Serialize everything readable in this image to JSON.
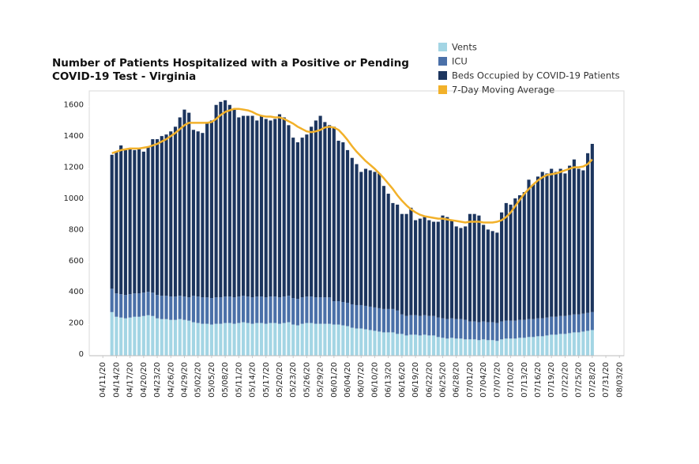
{
  "chart_data": {
    "type": "bar",
    "title": "Number of Patients Hospitalized with a Positive or Pending COVID-19 Test - Virginia",
    "x": [
      "04/13/20",
      "04/14/20",
      "04/15/20",
      "04/16/20",
      "04/17/20",
      "04/18/20",
      "04/19/20",
      "04/20/20",
      "04/21/20",
      "04/22/20",
      "04/23/20",
      "04/24/20",
      "04/25/20",
      "04/26/20",
      "04/27/20",
      "04/28/20",
      "04/29/20",
      "04/30/20",
      "05/01/20",
      "05/02/20",
      "05/03/20",
      "05/04/20",
      "05/05/20",
      "05/06/20",
      "05/07/20",
      "05/08/20",
      "05/09/20",
      "05/10/20",
      "05/11/20",
      "05/12/20",
      "05/13/20",
      "05/14/20",
      "05/15/20",
      "05/16/20",
      "05/17/20",
      "05/18/20",
      "05/19/20",
      "05/20/20",
      "05/21/20",
      "05/22/20",
      "05/23/20",
      "05/24/20",
      "05/25/20",
      "05/26/20",
      "05/27/20",
      "05/28/20",
      "05/29/20",
      "05/30/20",
      "05/31/20",
      "06/01/20",
      "06/02/20",
      "06/03/20",
      "06/04/20",
      "06/05/20",
      "06/06/20",
      "06/07/20",
      "06/08/20",
      "06/09/20",
      "06/10/20",
      "06/11/20",
      "06/12/20",
      "06/13/20",
      "06/14/20",
      "06/15/20",
      "06/16/20",
      "06/17/20",
      "06/18/20",
      "06/19/20",
      "06/20/20",
      "06/21/20",
      "06/22/20",
      "06/23/20",
      "06/24/20",
      "06/25/20",
      "06/26/20",
      "06/27/20",
      "06/28/20",
      "06/29/20",
      "06/30/20",
      "07/01/20",
      "07/02/20",
      "07/03/20",
      "07/04/20",
      "07/05/20",
      "07/06/20",
      "07/07/20",
      "07/08/20",
      "07/09/20",
      "07/10/20",
      "07/11/20",
      "07/12/20",
      "07/13/20",
      "07/14/20",
      "07/15/20",
      "07/16/20",
      "07/17/20",
      "07/18/20",
      "07/19/20",
      "07/20/20",
      "07/21/20",
      "07/22/20",
      "07/23/20",
      "07/24/20",
      "07/25/20",
      "07/26/20",
      "07/27/20",
      "07/28/20"
    ],
    "series": [
      {
        "name": "Vents",
        "color": "#a3d5e4",
        "values": [
          280,
          250,
          245,
          240,
          245,
          250,
          250,
          255,
          260,
          255,
          240,
          235,
          235,
          230,
          230,
          235,
          230,
          225,
          215,
          210,
          205,
          205,
          200,
          205,
          205,
          210,
          210,
          205,
          210,
          215,
          210,
          205,
          210,
          210,
          205,
          210,
          210,
          205,
          210,
          215,
          200,
          195,
          205,
          210,
          210,
          205,
          205,
          205,
          205,
          200,
          200,
          195,
          190,
          180,
          175,
          175,
          170,
          165,
          160,
          155,
          150,
          150,
          150,
          140,
          140,
          130,
          135,
          135,
          130,
          135,
          130,
          130,
          120,
          115,
          110,
          115,
          110,
          110,
          105,
          105,
          105,
          100,
          105,
          100,
          100,
          95,
          105,
          110,
          110,
          110,
          115,
          115,
          120,
          120,
          125,
          125,
          130,
          135,
          135,
          140,
          140,
          145,
          150,
          150,
          155,
          160,
          165
        ]
      },
      {
        "name": "ICU",
        "color": "#4a70a8",
        "values": [
          150,
          150,
          150,
          150,
          150,
          150,
          150,
          150,
          150,
          150,
          150,
          150,
          150,
          150,
          150,
          150,
          150,
          150,
          170,
          170,
          170,
          170,
          170,
          170,
          170,
          170,
          170,
          170,
          170,
          170,
          170,
          170,
          170,
          170,
          170,
          170,
          170,
          170,
          170,
          170,
          170,
          170,
          170,
          170,
          170,
          170,
          170,
          170,
          170,
          150,
          150,
          150,
          150,
          150,
          150,
          150,
          150,
          150,
          150,
          150,
          150,
          150,
          150,
          150,
          125,
          125,
          125,
          125,
          125,
          125,
          125,
          125,
          125,
          125,
          125,
          125,
          125,
          125,
          125,
          115,
          115,
          115,
          115,
          115,
          115,
          115,
          115,
          115,
          115,
          115,
          115,
          115,
          115,
          115,
          115,
          115,
          115,
          115,
          115,
          115,
          115,
          115,
          115,
          115,
          115,
          115,
          115
        ]
      },
      {
        "name": "Beds Occupied by COVID-19 Patients",
        "color": "#1c355e",
        "values": [
          860,
          910,
          955,
          930,
          935,
          920,
          930,
          905,
          930,
          985,
          1000,
          1025,
          1035,
          1060,
          1090,
          1145,
          1200,
          1185,
          1065,
          1060,
          1055,
          1125,
          1140,
          1235,
          1255,
          1260,
          1230,
          1205,
          1150,
          1155,
          1160,
          1165,
          1130,
          1160,
          1145,
          1130,
          1140,
          1175,
          1150,
          1095,
          1030,
          1005,
          1025,
          1040,
          1090,
          1135,
          1165,
          1125,
          1105,
          1120,
          1030,
          1025,
          980,
          940,
          905,
          855,
          880,
          875,
          870,
          865,
          790,
          740,
          680,
          680,
          645,
          655,
          690,
          610,
          625,
          630,
          615,
          605,
          615,
          660,
          655,
          630,
          595,
          585,
          600,
          690,
          690,
          685,
          620,
          595,
          585,
          580,
          700,
          755,
          745,
          785,
          800,
          820,
          895,
          865,
          910,
          940,
          925,
          950,
          930,
          945,
          915,
          960,
          995,
          935,
          920,
          1025,
          1080
        ]
      },
      {
        "name": "7-Day Moving Average",
        "color": "#f2b12a",
        "type": "line",
        "values": [
          1300,
          1310,
          1320,
          1325,
          1330,
          1330,
          1330,
          1335,
          1340,
          1350,
          1360,
          1375,
          1390,
          1410,
          1430,
          1455,
          1480,
          1495,
          1495,
          1495,
          1495,
          1495,
          1500,
          1520,
          1545,
          1565,
          1575,
          1585,
          1585,
          1580,
          1575,
          1565,
          1550,
          1540,
          1535,
          1535,
          1530,
          1530,
          1520,
          1505,
          1490,
          1470,
          1455,
          1440,
          1435,
          1440,
          1450,
          1465,
          1470,
          1465,
          1450,
          1420,
          1385,
          1345,
          1310,
          1280,
          1250,
          1225,
          1200,
          1170,
          1140,
          1105,
          1070,
          1030,
          995,
          965,
          940,
          920,
          905,
          895,
          890,
          885,
          880,
          880,
          875,
          870,
          865,
          860,
          855,
          860,
          860,
          860,
          855,
          855,
          855,
          860,
          870,
          890,
          920,
          960,
          1000,
          1040,
          1070,
          1100,
          1125,
          1145,
          1160,
          1165,
          1170,
          1180,
          1190,
          1200,
          1210,
          1210,
          1215,
          1230,
          1260
        ]
      }
    ],
    "xlim": [
      "04/08/20",
      "08/04/20"
    ],
    "xticks": [
      "04/11/20",
      "04/14/20",
      "04/17/20",
      "04/20/20",
      "04/23/20",
      "04/26/20",
      "04/29/20",
      "05/02/20",
      "05/05/20",
      "05/08/20",
      "05/11/20",
      "05/14/20",
      "05/17/20",
      "05/20/20",
      "05/23/20",
      "05/26/20",
      "05/29/20",
      "06/01/20",
      "06/04/20",
      "06/07/20",
      "06/10/20",
      "06/13/20",
      "06/16/20",
      "06/19/20",
      "06/22/20",
      "06/25/20",
      "06/28/20",
      "07/01/20",
      "07/04/20",
      "07/07/20",
      "07/10/20",
      "07/13/20",
      "07/16/20",
      "07/19/20",
      "07/22/20",
      "07/25/20",
      "07/28/20",
      "07/31/20",
      "08/03/20"
    ],
    "ylim": [
      0,
      1700
    ],
    "yticks": [
      0,
      200,
      400,
      600,
      800,
      1000,
      1200,
      1400,
      1600
    ],
    "stacked": true
  }
}
